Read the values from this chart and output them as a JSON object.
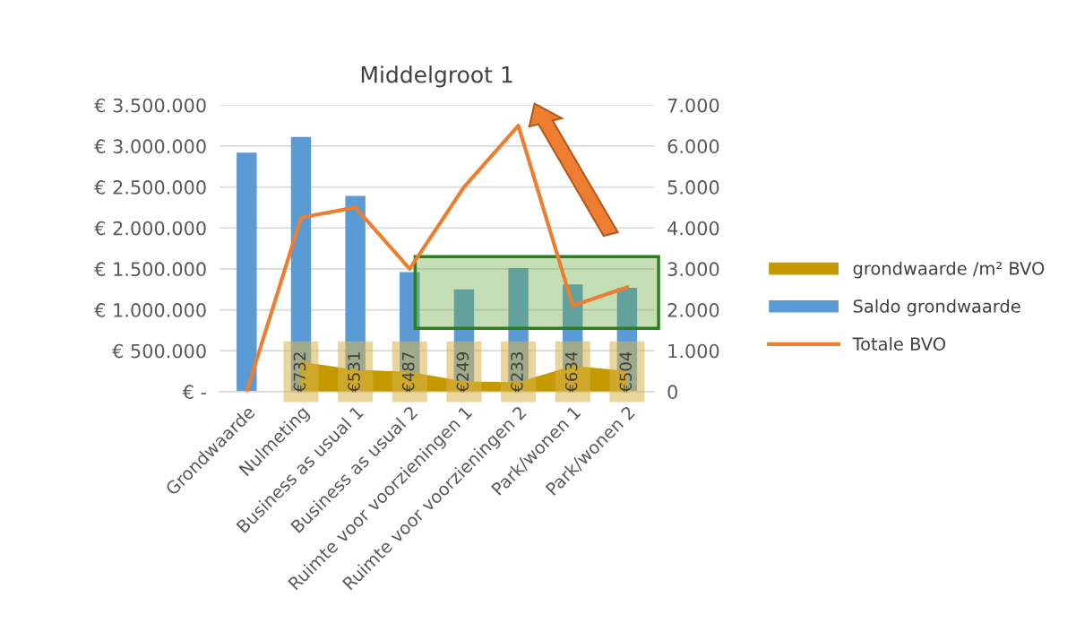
{
  "chart_data": {
    "type": "bar",
    "title": "Middelgroot 1",
    "categories": [
      "Grondwaarde",
      "Nulmeting",
      "Business as usual 1",
      "Business as usual 2",
      "Ruimte voor voorzieningen 1",
      "Ruimte voor voorzieningen 2",
      "Park/wonen 1",
      "Park/wonen 2"
    ],
    "series": [
      {
        "name": "grondwaarde /m² BVO",
        "type": "area",
        "axis": "y2",
        "color": "#c49a00",
        "values": [
          null,
          732,
          531,
          487,
          249,
          233,
          634,
          504
        ],
        "value_labels": [
          null,
          "€732",
          "€531",
          "€487",
          "€249",
          "€233",
          "€634",
          "€504"
        ]
      },
      {
        "name": "Saldo grondwaarde",
        "color": "#5b9bd5",
        "values": [
          2920000,
          3110000,
          2390000,
          1460000,
          1250000,
          1510000,
          1310000,
          1270000
        ]
      },
      {
        "name": "Totale BVO",
        "type": "line",
        "axis": "y2",
        "color": "#ed7d31",
        "values": [
          0,
          4250,
          4500,
          3000,
          5000,
          6500,
          2100,
          2550
        ]
      }
    ],
    "ylim": [
      0,
      3500000
    ],
    "yticks": [
      {
        "value": 0,
        "label": "€ -"
      },
      {
        "value": 500000,
        "label": "€ 500.000"
      },
      {
        "value": 1000000,
        "label": "€ 1.000.000"
      },
      {
        "value": 1500000,
        "label": "€ 1.500.000"
      },
      {
        "value": 2000000,
        "label": "€ 2.000.000"
      },
      {
        "value": 2500000,
        "label": "€ 2.500.000"
      },
      {
        "value": 3000000,
        "label": "€ 3.000.000"
      },
      {
        "value": 3500000,
        "label": "€ 3.500.000"
      }
    ],
    "y2lim": [
      0,
      7000
    ],
    "y2ticks": [
      0,
      {
        "value": 1000,
        "label": "1.000"
      },
      {
        "value": 2000,
        "label": "2.000"
      },
      {
        "value": 3000,
        "label": "3.000"
      },
      {
        "value": 4000,
        "label": "4.000"
      },
      {
        "value": 5000,
        "label": "5.000"
      },
      {
        "value": 6000,
        "label": "6.000"
      },
      {
        "value": 7000,
        "label": "7.000"
      }
    ],
    "grid": "y",
    "legend": "right",
    "marker": "none",
    "line_style": "solid"
  }
}
